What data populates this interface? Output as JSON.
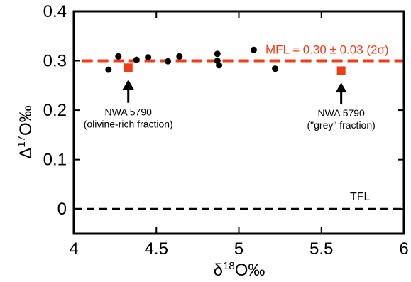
{
  "chart_data": {
    "type": "scatter",
    "xlabel_prefix": "δ",
    "xlabel_sup": "18",
    "xlabel_suffix": "O‰",
    "ylabel_prefix": "Δ",
    "ylabel_sup": "17",
    "ylabel_suffix": "O‰",
    "xlim": [
      4,
      6
    ],
    "ylim": [
      -0.05,
      0.4
    ],
    "x_ticks": [
      4,
      4.5,
      5,
      5.5,
      6
    ],
    "x_tick_labels": [
      "4",
      "4.5",
      "5",
      "5.5",
      "6"
    ],
    "y_ticks": [
      0,
      0.1,
      0.2,
      0.3,
      0.4
    ],
    "y_tick_labels": [
      "0",
      "0.1",
      "0.2",
      "0.3",
      "0.4"
    ],
    "grid": false,
    "series": [
      {
        "points": [
          {
            "x": 4.21,
            "y": 0.282
          },
          {
            "x": 4.27,
            "y": 0.309
          },
          {
            "x": 4.38,
            "y": 0.302
          },
          {
            "x": 4.45,
            "y": 0.307
          },
          {
            "x": 4.57,
            "y": 0.299
          },
          {
            "x": 4.64,
            "y": 0.309
          },
          {
            "x": 4.87,
            "y": 0.314
          },
          {
            "x": 4.87,
            "y": 0.3
          },
          {
            "x": 4.88,
            "y": 0.291
          },
          {
            "x": 5.09,
            "y": 0.322
          },
          {
            "x": 5.22,
            "y": 0.284
          }
        ],
        "marker": "circle",
        "color": "#000000"
      },
      {
        "points": [
          {
            "x": 4.33,
            "y": 0.286
          },
          {
            "x": 5.62,
            "y": 0.28
          }
        ],
        "marker": "square",
        "color": "#f03c14"
      }
    ],
    "lines": [
      {
        "label": "MFL = 0.30 ± 0.03 (2σ)",
        "y": 0.3,
        "x_start": 4.05,
        "x_end": 6,
        "color": "#f03c14",
        "style": "dashed"
      },
      {
        "label": "TFL",
        "y": 0.0,
        "x_start": 4,
        "x_end": 6,
        "color": "#000000",
        "style": "dashed"
      }
    ],
    "annotations": [
      {
        "lines": [
          "NWA 5790",
          "(olivine-rich fraction)"
        ],
        "arrow_to": {
          "x": 4.33,
          "y": 0.262
        },
        "arrow_from_y": 0.215
      },
      {
        "lines": [
          "NWA 5790",
          "(\"grey\" fraction)"
        ],
        "arrow_to": {
          "x": 5.62,
          "y": 0.256
        },
        "arrow_from_y": 0.213
      }
    ]
  }
}
